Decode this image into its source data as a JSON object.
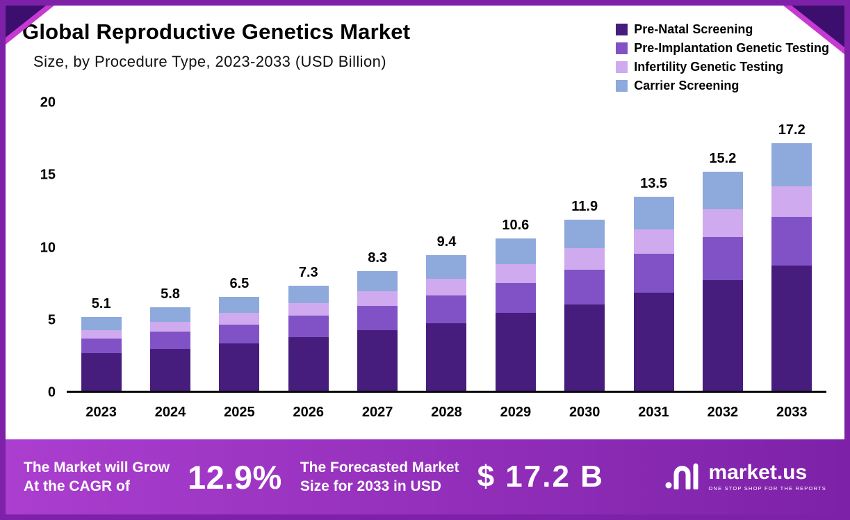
{
  "header": {
    "title": "Global Reproductive Genetics Market",
    "subtitle": "Size, by Procedure Type, 2023-2033 (USD Billion)"
  },
  "chart_data": {
    "type": "bar",
    "stacked": true,
    "title": "Global Reproductive Genetics Market Size, by Procedure Type, 2023-2033 (USD Billion)",
    "categories": [
      "2023",
      "2024",
      "2025",
      "2026",
      "2027",
      "2028",
      "2029",
      "2030",
      "2031",
      "2032",
      "2033"
    ],
    "totals": [
      5.1,
      5.8,
      6.5,
      7.3,
      8.3,
      9.4,
      10.6,
      11.9,
      13.5,
      15.2,
      17.2
    ],
    "series": [
      {
        "name": "Pre-Natal Screening",
        "color": "#461d7c",
        "values": [
          2.6,
          2.9,
          3.3,
          3.7,
          4.2,
          4.7,
          5.4,
          6.0,
          6.8,
          7.7,
          8.7
        ]
      },
      {
        "name": "Pre-Implantation Genetic Testing",
        "color": "#8152c6",
        "values": [
          1.0,
          1.2,
          1.3,
          1.5,
          1.7,
          1.9,
          2.1,
          2.4,
          2.7,
          3.0,
          3.4
        ]
      },
      {
        "name": "Infertility Genetic Testing",
        "color": "#cfaaee",
        "values": [
          0.6,
          0.7,
          0.8,
          0.9,
          1.0,
          1.2,
          1.3,
          1.5,
          1.7,
          1.9,
          2.1
        ]
      },
      {
        "name": "Carrier Screening",
        "color": "#8ea9dc",
        "values": [
          0.9,
          1.0,
          1.1,
          1.2,
          1.4,
          1.6,
          1.8,
          2.0,
          2.3,
          2.6,
          3.0
        ]
      }
    ],
    "xlabel": "",
    "ylabel": "",
    "ylim": [
      0,
      20
    ],
    "yticks": [
      0,
      5,
      10,
      15,
      20
    ],
    "grid": false,
    "legend_position": "top-right"
  },
  "banner": {
    "growth_line1": "The Market will Grow",
    "growth_line2": "At the CAGR of",
    "cagr": "12.9%",
    "forecast_line1": "The Forecasted Market",
    "forecast_line2": "Size for 2033 in USD",
    "forecast_value": "$ 17.2 B",
    "brand": "market.us",
    "brand_tagline": "ONE STOP SHOP FOR THE REPORTS"
  },
  "colors": {
    "border": "#7d22a8",
    "banner_gradient_start": "#ab3ecf",
    "banner_gradient_end": "#7d22a8",
    "corner_dark": "#3c0f6e",
    "corner_magenta": "#c63ad2",
    "axis_line": "#0a0a0a"
  }
}
